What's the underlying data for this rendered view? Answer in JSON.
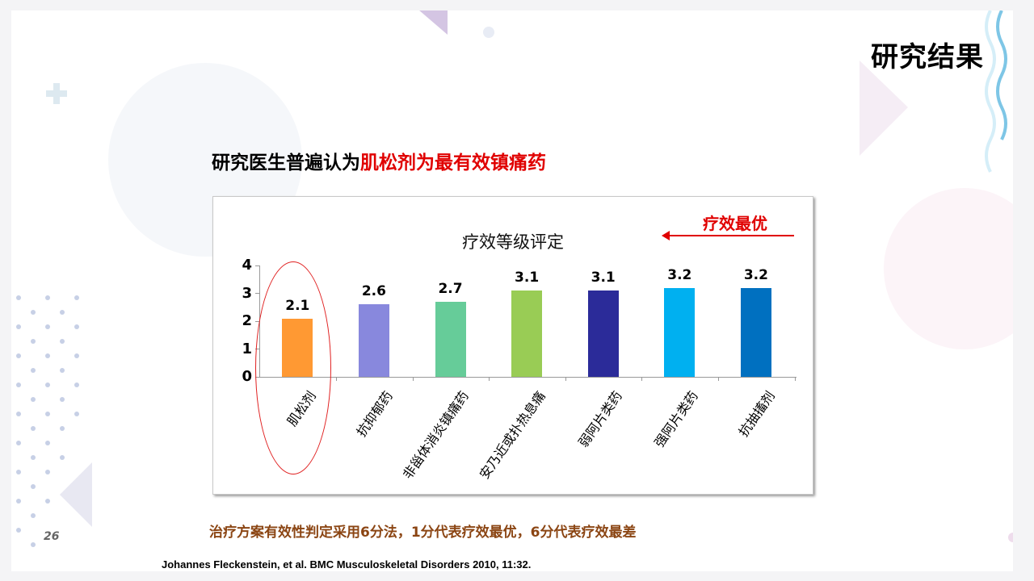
{
  "slide": {
    "title": "研究结果",
    "headline_black": "研究医生普遍认为",
    "headline_red": "肌松剂为最有效镇痛药",
    "note": "治疗方案有效性判定采用6分法，1分代表疗效最优，6分代表疗效最差",
    "reference": "Johannes Fleckenstein, et al. BMC Musculoskeletal Disorders 2010, 11:32.",
    "page_number": "26",
    "colors": {
      "accent_red": "#e00000",
      "note_brown": "#8b4513"
    }
  },
  "chart_data": {
    "type": "bar",
    "title": "疗效等级评定",
    "annotation": "疗效最优",
    "annotation_arrow": "left",
    "categories": [
      "肌松剂",
      "抗抑郁药",
      "非甾体消炎镇痛药",
      "安乃近或扑热息痛",
      "弱阿片类药",
      "强阿片类药",
      "抗抽搐剂"
    ],
    "values": [
      2.1,
      2.6,
      2.7,
      3.1,
      3.1,
      3.2,
      3.2
    ],
    "value_labels": [
      "2.1",
      "2.6",
      "2.7",
      "3.1",
      "3.1",
      "3.2",
      "3.2"
    ],
    "colors": [
      "#ff9933",
      "#8888dd",
      "#66cc99",
      "#99cc55",
      "#2b2b99",
      "#00b0f0",
      "#0070c0"
    ],
    "yticks": [
      "0",
      "1",
      "2",
      "3",
      "4"
    ],
    "ylim": [
      0,
      4
    ],
    "xlabel": "",
    "ylabel": "",
    "grid": false,
    "highlighted_category": "肌松剂"
  }
}
